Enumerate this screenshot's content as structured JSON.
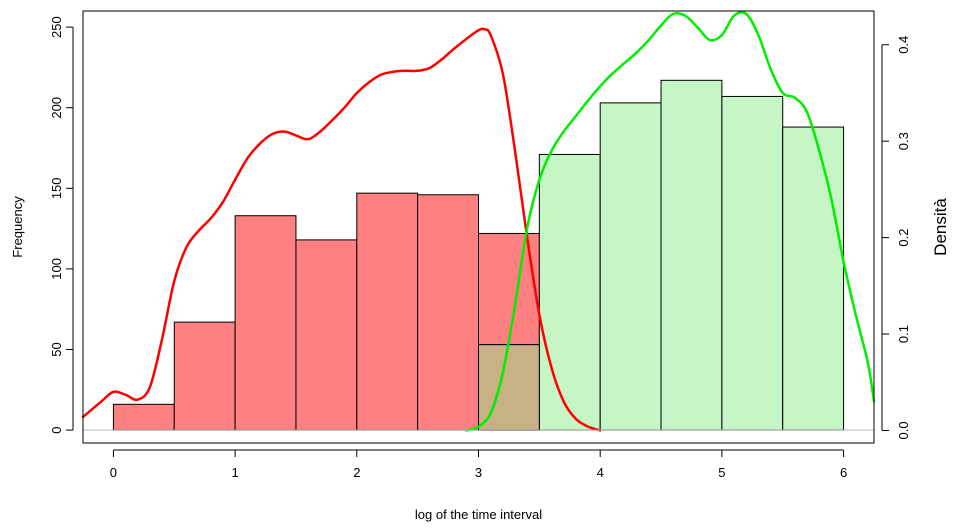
{
  "chart_data": {
    "type": "bar",
    "xlabel": "log of the time interval",
    "ylabel": "Frequency",
    "y2label": "Densità",
    "xlim": [
      -0.25,
      6.25
    ],
    "ylim": [
      -8,
      260
    ],
    "y2lim": [
      -0.013,
      0.435
    ],
    "x_ticks": [
      0,
      1,
      2,
      3,
      4,
      5,
      6
    ],
    "x_tick_labels": [
      "0",
      "1",
      "2",
      "3",
      "4",
      "5",
      "6"
    ],
    "y_ticks": [
      0,
      50,
      100,
      150,
      200,
      250
    ],
    "y_tick_labels": [
      "0",
      "50",
      "100",
      "150",
      "200",
      "250"
    ],
    "y2_ticks": [
      0.0,
      0.1,
      0.2,
      0.3,
      0.4
    ],
    "y2_tick_labels": [
      "0.0",
      "0.1",
      "0.2",
      "0.3",
      "0.4"
    ],
    "grid": false,
    "histograms": [
      {
        "color": "#ff8080",
        "bins": [
          {
            "from": 0.0,
            "to": 0.5,
            "count": 16
          },
          {
            "from": 0.5,
            "to": 1.0,
            "count": 67
          },
          {
            "from": 1.0,
            "to": 1.5,
            "count": 133
          },
          {
            "from": 1.5,
            "to": 2.0,
            "count": 118
          },
          {
            "from": 2.0,
            "to": 2.5,
            "count": 147
          },
          {
            "from": 2.5,
            "to": 3.0,
            "count": 146
          },
          {
            "from": 3.0,
            "to": 3.5,
            "count": 122
          }
        ]
      },
      {
        "color": "#c6f5c6",
        "bins": [
          {
            "from": 3.0,
            "to": 3.5,
            "count": 53
          },
          {
            "from": 3.5,
            "to": 4.0,
            "count": 171
          },
          {
            "from": 4.0,
            "to": 4.5,
            "count": 203
          },
          {
            "from": 4.5,
            "to": 5.0,
            "count": 217
          },
          {
            "from": 5.0,
            "to": 5.5,
            "count": 207
          },
          {
            "from": 5.5,
            "to": 6.0,
            "count": 188
          }
        ]
      }
    ],
    "overlap_color": "#c8b285",
    "density_curves": [
      {
        "color": "#ff0000",
        "x": [
          -0.25,
          -0.1,
          0.0,
          0.1,
          0.2,
          0.3,
          0.4,
          0.5,
          0.6,
          0.7,
          0.8,
          0.9,
          1.0,
          1.1,
          1.2,
          1.3,
          1.4,
          1.5,
          1.6,
          1.7,
          1.8,
          1.9,
          2.0,
          2.1,
          2.2,
          2.3,
          2.4,
          2.5,
          2.6,
          2.7,
          2.8,
          2.9,
          3.0,
          3.05,
          3.1,
          3.2,
          3.3,
          3.4,
          3.5,
          3.6,
          3.7,
          3.8,
          3.9,
          4.0
        ],
        "y": [
          0.014,
          0.03,
          0.04,
          0.037,
          0.032,
          0.045,
          0.095,
          0.155,
          0.19,
          0.207,
          0.22,
          0.237,
          0.26,
          0.282,
          0.297,
          0.307,
          0.31,
          0.306,
          0.302,
          0.31,
          0.322,
          0.335,
          0.35,
          0.361,
          0.369,
          0.372,
          0.373,
          0.373,
          0.376,
          0.385,
          0.396,
          0.406,
          0.415,
          0.416,
          0.41,
          0.37,
          0.29,
          0.2,
          0.12,
          0.065,
          0.03,
          0.012,
          0.004,
          0.0
        ]
      },
      {
        "color": "#00ee00",
        "x": [
          2.9,
          3.0,
          3.1,
          3.2,
          3.3,
          3.4,
          3.5,
          3.6,
          3.7,
          3.8,
          3.9,
          4.0,
          4.1,
          4.2,
          4.3,
          4.4,
          4.5,
          4.6,
          4.7,
          4.8,
          4.9,
          5.0,
          5.1,
          5.2,
          5.3,
          5.4,
          5.5,
          5.6,
          5.7,
          5.8,
          5.9,
          6.0,
          6.1,
          6.2,
          6.25
        ],
        "y": [
          0.0,
          0.004,
          0.018,
          0.06,
          0.13,
          0.21,
          0.26,
          0.29,
          0.31,
          0.326,
          0.342,
          0.357,
          0.37,
          0.381,
          0.392,
          0.405,
          0.42,
          0.432,
          0.43,
          0.418,
          0.405,
          0.41,
          0.43,
          0.432,
          0.41,
          0.375,
          0.35,
          0.345,
          0.33,
          0.29,
          0.24,
          0.175,
          0.12,
          0.07,
          0.03
        ]
      }
    ]
  }
}
